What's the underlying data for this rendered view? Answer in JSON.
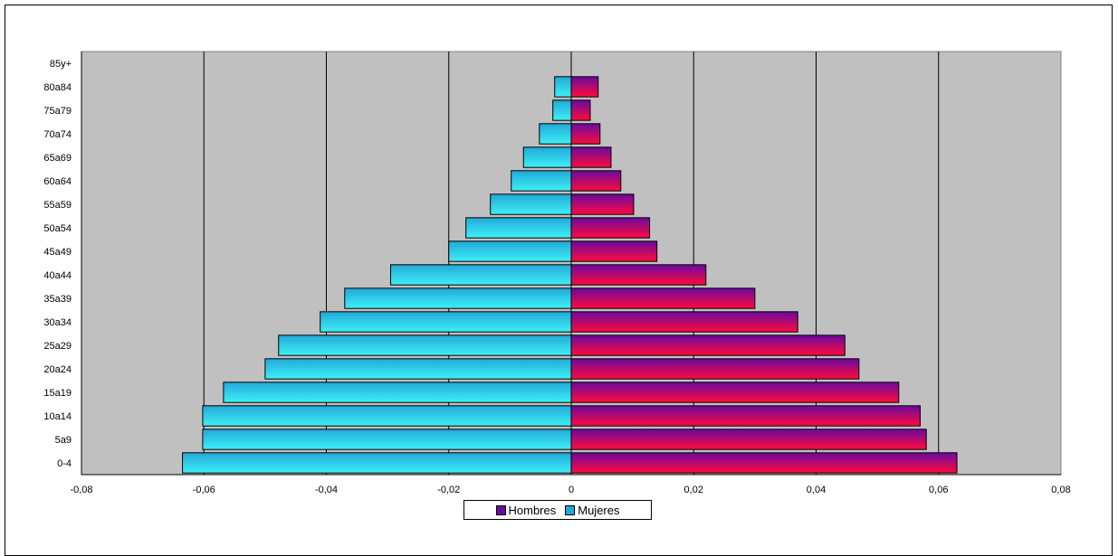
{
  "chart_data": {
    "type": "bar",
    "orientation": "horizontal",
    "categories": [
      "0-4",
      "5a9",
      "10a14",
      "15a19",
      "20a24",
      "25a29",
      "30a34",
      "35a39",
      "40a44",
      "45a49",
      "50a54",
      "55a59",
      "60a64",
      "65a69",
      "70a74",
      "75a79",
      "80a84",
      "85y+"
    ],
    "series": [
      {
        "name": "Hombres",
        "values": [
          0.063,
          0.058,
          0.057,
          0.0535,
          0.047,
          0.0447,
          0.037,
          0.03,
          0.022,
          0.014,
          0.0128,
          0.0102,
          0.0081,
          0.0065,
          0.0047,
          0.0031,
          0.0044,
          0
        ]
      },
      {
        "name": "Mujeres",
        "values": [
          -0.0635,
          -0.0602,
          -0.0602,
          -0.0568,
          -0.05,
          -0.0478,
          -0.041,
          -0.037,
          -0.0295,
          -0.02,
          -0.0172,
          -0.0132,
          -0.0098,
          -0.0078,
          -0.0052,
          -0.003,
          -0.0027,
          0
        ]
      }
    ],
    "xlim": [
      -0.08,
      0.08
    ],
    "xticks": [
      "-0,08",
      "-0,06",
      "-0,04",
      "-0,02",
      "0",
      "0,02",
      "0,04",
      "0,06",
      "0,08"
    ],
    "grid": "vertical",
    "legend_position": "bottom",
    "colors": {
      "hombres_top": "#6a0aa0",
      "hombres_bottom": "#ff0a3c",
      "mujeres_top": "#22a8d8",
      "mujeres_bottom": "#3ef0f6",
      "plot_background": "#c0c0c0"
    }
  },
  "legend": {
    "hombres_label": "Hombres",
    "mujeres_label": "Mujeres"
  }
}
